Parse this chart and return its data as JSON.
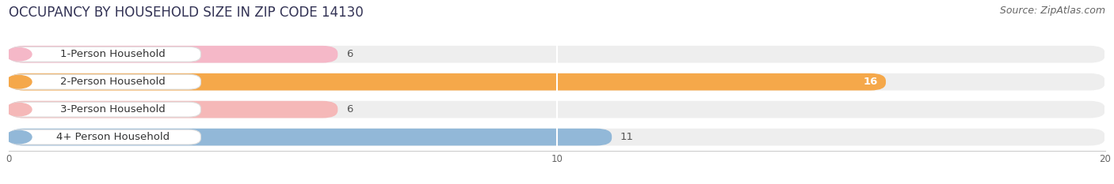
{
  "title": "OCCUPANCY BY HOUSEHOLD SIZE IN ZIP CODE 14130",
  "source": "Source: ZipAtlas.com",
  "categories": [
    "1-Person Household",
    "2-Person Household",
    "3-Person Household",
    "4+ Person Household"
  ],
  "values": [
    6,
    16,
    6,
    11
  ],
  "bar_colors": [
    "#f5b8c8",
    "#f5a84a",
    "#f5b8b8",
    "#92b8d8"
  ],
  "xlim": [
    0,
    20
  ],
  "xticks": [
    0,
    10,
    20
  ],
  "background_color": "#ffffff",
  "bar_background_color": "#eeeeee",
  "title_fontsize": 12,
  "source_fontsize": 9,
  "label_fontsize": 9.5,
  "value_fontsize": 9.5,
  "bar_height": 0.62,
  "figsize": [
    14.06,
    2.33
  ]
}
